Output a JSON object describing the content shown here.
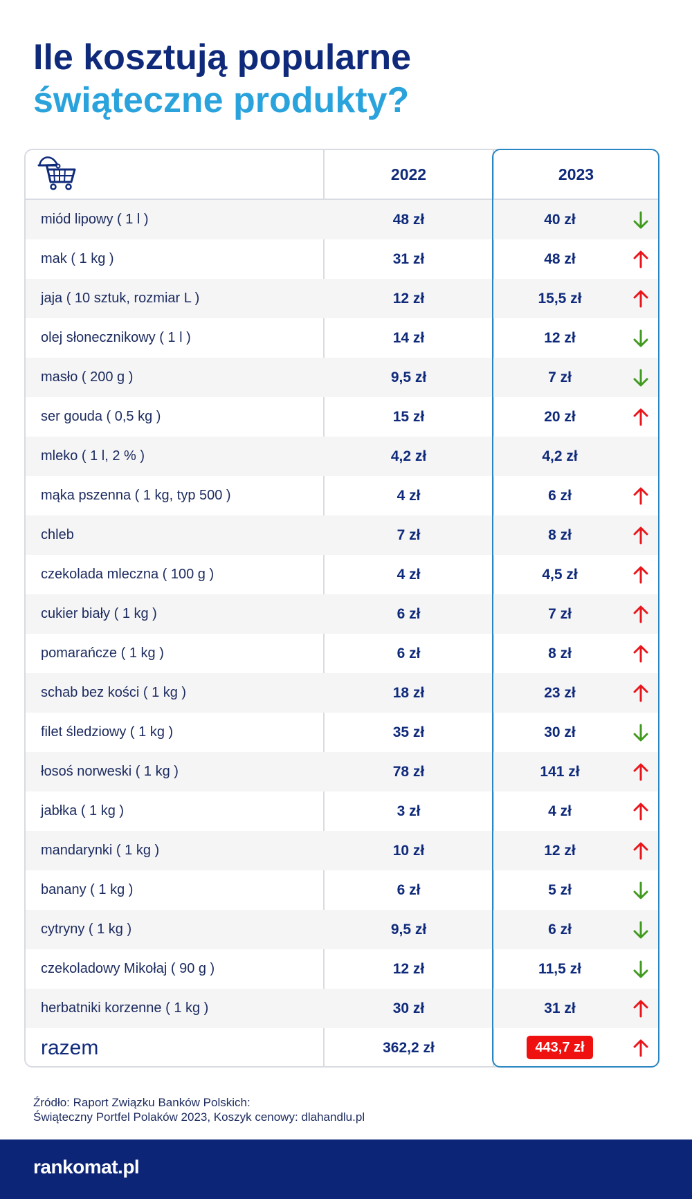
{
  "title": {
    "line1": "Ile kosztują popularne",
    "line2": "świąteczne produkty?"
  },
  "colors": {
    "navy": "#0f2a7a",
    "blue": "#2aa3dc",
    "up": "#e8161b",
    "down": "#3f9a1e",
    "badge": "#ef1010"
  },
  "chart_data": {
    "type": "table",
    "columns": [
      "",
      "2022",
      "2023"
    ],
    "rows": [
      {
        "name": "miód lipowy ( 1 l )",
        "y2022": "48 zł",
        "y2023": "40  zł",
        "trend": "down"
      },
      {
        "name": "mak ( 1 kg )",
        "y2022": "31 zł",
        "y2023": "48 zł",
        "trend": "up"
      },
      {
        "name": "jaja ( 10 sztuk, rozmiar L )",
        "y2022": "12 zł",
        "y2023": "15,5 zł",
        "trend": "up"
      },
      {
        "name": "olej słonecznikowy ( 1 l )",
        "y2022": "14 zł",
        "y2023": "12 zł",
        "trend": "down"
      },
      {
        "name": "masło ( 200 g )",
        "y2022": "9,5 zł",
        "y2023": "7 zł",
        "trend": "down"
      },
      {
        "name": "ser gouda ( 0,5 kg )",
        "y2022": "15 zł",
        "y2023": "20 zł",
        "trend": "up"
      },
      {
        "name": "mleko ( 1 l, 2 % )",
        "y2022": "4,2 zł",
        "y2023": "4,2 zł",
        "trend": "none"
      },
      {
        "name": "mąka pszenna ( 1 kg, typ 500 )",
        "y2022": "4 zł",
        "y2023": "6 zł",
        "trend": "up"
      },
      {
        "name": "chleb",
        "y2022": "7 zł",
        "y2023": "8 zł",
        "trend": "up"
      },
      {
        "name": "czekolada mleczna ( 100 g )",
        "y2022": "4 zł",
        "y2023": "4,5 zł",
        "trend": "up"
      },
      {
        "name": "cukier biały ( 1 kg )",
        "y2022": "6 zł",
        "y2023": "7 zł",
        "trend": "up"
      },
      {
        "name": "pomarańcze ( 1 kg )",
        "y2022": "6 zł",
        "y2023": "8 zł",
        "trend": "up"
      },
      {
        "name": "schab bez kości ( 1 kg )",
        "y2022": "18 zł",
        "y2023": "23 zł",
        "trend": "up"
      },
      {
        "name": "filet śledziowy ( 1 kg )",
        "y2022": "35 zł",
        "y2023": "30 zł",
        "trend": "down"
      },
      {
        "name": "łosoś norweski ( 1 kg )",
        "y2022": "78 zł",
        "y2023": "141 zł",
        "trend": "up"
      },
      {
        "name": "jabłka ( 1 kg )",
        "y2022": "3 zł",
        "y2023": "4 zł",
        "trend": "up"
      },
      {
        "name": "mandarynki ( 1 kg )",
        "y2022": "10 zł",
        "y2023": "12 zł",
        "trend": "up"
      },
      {
        "name": "banany ( 1 kg )",
        "y2022": "6 zł",
        "y2023": "5 zł",
        "trend": "down"
      },
      {
        "name": "cytryny ( 1 kg )",
        "y2022": "9,5 zł",
        "y2023": "6 zł",
        "trend": "down"
      },
      {
        "name": "czekoladowy Mikołaj ( 90 g )",
        "y2022": "12 zł",
        "y2023": "11,5 zł",
        "trend": "down"
      },
      {
        "name": "herbatniki korzenne ( 1 kg )",
        "y2022": "30 zł",
        "y2023": "31 zł",
        "trend": "up"
      }
    ],
    "total": {
      "name": "razem",
      "y2022": "362,2 zł",
      "y2023": "443,7 zł",
      "trend": "up"
    }
  },
  "header_icon": "shopping-cart-santa-hat-icon",
  "source": {
    "line1": "Źródło:  Raport Związku Banków Polskich:",
    "line2": "Świąteczny Portfel Polaków 2023, Koszyk cenowy: dlahandlu.pl"
  },
  "footer": {
    "logo": "rankomat.pl"
  }
}
